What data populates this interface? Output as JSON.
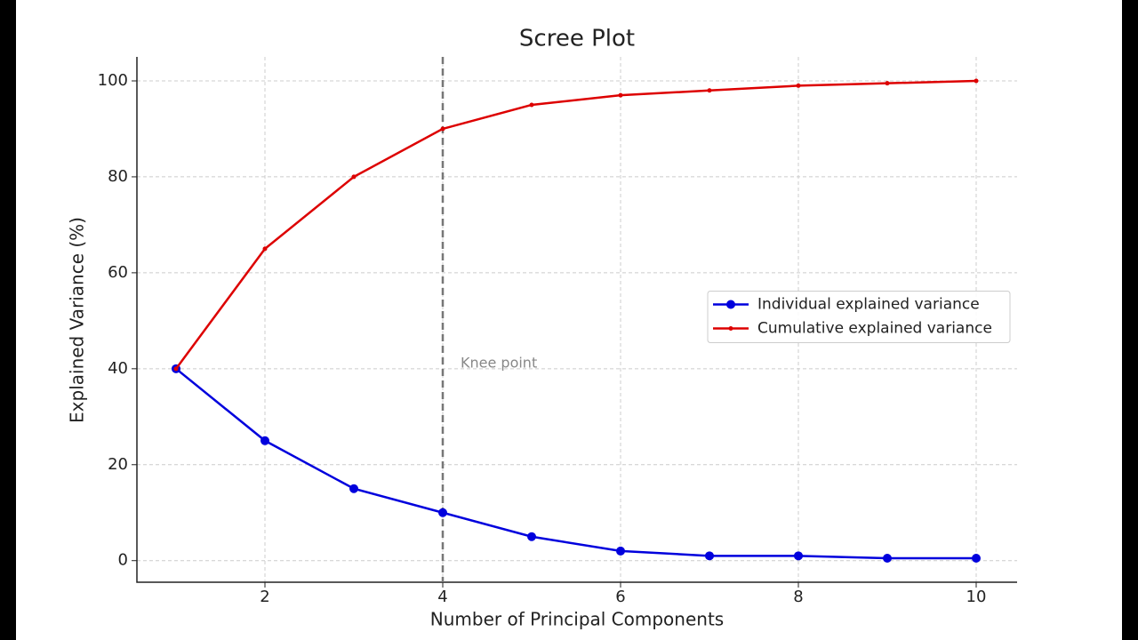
{
  "chart_data": {
    "type": "line",
    "title": "Scree Plot",
    "x_label": "Number of Principal Components",
    "y_label": "Explained Variance (%)",
    "x": [
      1,
      2,
      3,
      4,
      5,
      6,
      7,
      8,
      9,
      10
    ],
    "series": [
      {
        "name": "Individual explained variance",
        "color": "#0000dd",
        "marker": "large",
        "values": [
          40,
          25,
          15,
          10,
          5,
          2,
          1,
          1,
          0.5,
          0.5
        ]
      },
      {
        "name": "Cumulative explained variance",
        "color": "#dd0000",
        "marker": "small",
        "values": [
          40,
          65,
          80,
          90,
          95,
          97,
          98,
          99,
          99.5,
          100
        ]
      }
    ],
    "xlim": [
      0.56,
      10.46
    ],
    "ylim": [
      -4.5,
      105
    ],
    "xticks": [
      2,
      4,
      6,
      8,
      10
    ],
    "yticks": [
      0,
      20,
      40,
      60,
      80,
      100
    ],
    "grid": true,
    "legend": "center right",
    "knee_x": 4,
    "knee_label": "Knee point"
  }
}
